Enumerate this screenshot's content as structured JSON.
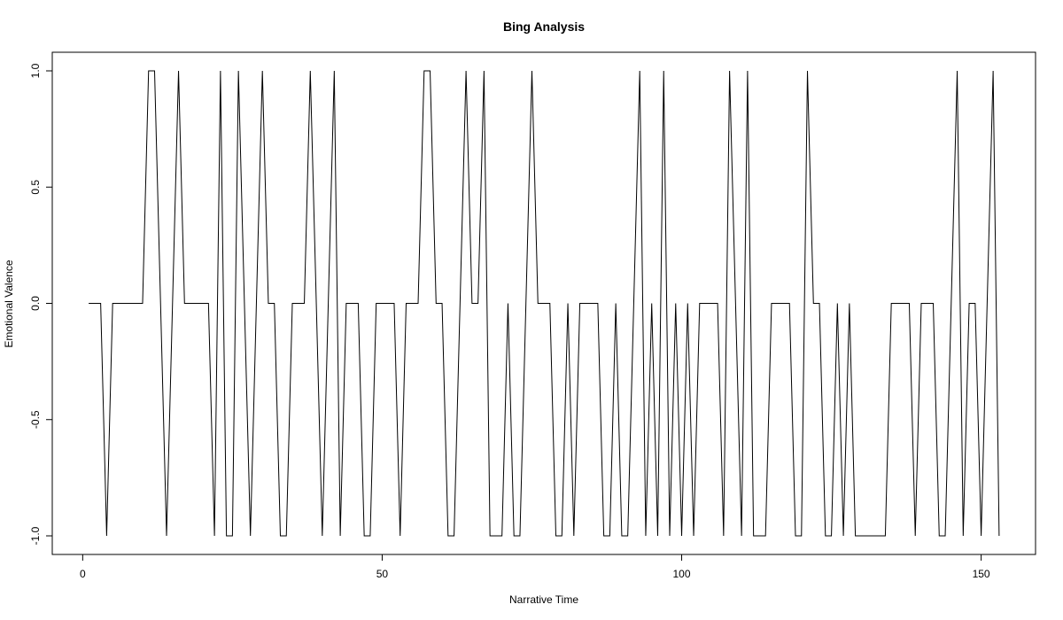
{
  "chart_data": {
    "type": "line",
    "title": "Bing Analysis",
    "x_label": "Narrative Time",
    "y_label": "Emotional Valence",
    "color": "#000000",
    "x": [
      1,
      2,
      3,
      4,
      5,
      6,
      7,
      8,
      9,
      10,
      11,
      12,
      13,
      14,
      15,
      16,
      17,
      18,
      19,
      20,
      21,
      22,
      23,
      24,
      25,
      26,
      27,
      28,
      29,
      30,
      31,
      32,
      33,
      34,
      35,
      36,
      37,
      38,
      39,
      40,
      41,
      42,
      43,
      44,
      45,
      46,
      47,
      48,
      49,
      50,
      51,
      52,
      53,
      54,
      55,
      56,
      57,
      58,
      59,
      60,
      61,
      62,
      63,
      64,
      65,
      66,
      67,
      68,
      69,
      70,
      71,
      72,
      73,
      74,
      75,
      76,
      77,
      78,
      79,
      80,
      81,
      82,
      83,
      84,
      85,
      86,
      87,
      88,
      89,
      90,
      91,
      92,
      93,
      94,
      95,
      96,
      97,
      98,
      99,
      100,
      101,
      102,
      103,
      104,
      105,
      106,
      107,
      108,
      109,
      110,
      111,
      112,
      113,
      114,
      115,
      116,
      117,
      118,
      119,
      120,
      121,
      122,
      123,
      124,
      125,
      126,
      127,
      128,
      129,
      130,
      131,
      132,
      133,
      134,
      135,
      136,
      137,
      138,
      139,
      140,
      141,
      142,
      143,
      144,
      145,
      146,
      147,
      148,
      149,
      150,
      151,
      152,
      153
    ],
    "values": [
      0,
      0,
      0,
      -1,
      0,
      0,
      0,
      0,
      0,
      0,
      1,
      1,
      0,
      -1,
      0,
      1,
      0,
      0,
      0,
      0,
      0,
      -1,
      1,
      -1,
      -1,
      1,
      0,
      -1,
      0,
      1,
      0,
      0,
      -1,
      -1,
      0,
      0,
      0,
      1,
      0,
      -1,
      0,
      1,
      -1,
      0,
      0,
      0,
      -1,
      -1,
      0,
      0,
      0,
      0,
      -1,
      0,
      0,
      0,
      1,
      1,
      0,
      0,
      -1,
      -1,
      0,
      1,
      0,
      0,
      1,
      -1,
      -1,
      -1,
      0,
      -1,
      -1,
      0,
      1,
      0,
      0,
      0,
      -1,
      -1,
      0,
      -1,
      0,
      0,
      0,
      0,
      -1,
      -1,
      0,
      -1,
      -1,
      0,
      1,
      -1,
      0,
      -1,
      1,
      -1,
      0,
      -1,
      0,
      -1,
      0,
      0,
      0,
      0,
      -1,
      1,
      0,
      -1,
      1,
      -1,
      -1,
      -1,
      0,
      0,
      0,
      0,
      -1,
      -1,
      1,
      0,
      0,
      -1,
      -1,
      0,
      -1,
      0,
      -1,
      -1,
      -1,
      -1,
      -1,
      -1,
      0,
      0,
      0,
      0,
      -1,
      0,
      0,
      0,
      -1,
      -1,
      0,
      1,
      -1,
      0,
      0,
      -1,
      0,
      1,
      -1
    ],
    "xlim": [
      -5.08,
      159.08
    ],
    "ylim": [
      -1.08,
      1.08
    ],
    "xticks": [
      0,
      50,
      100,
      150
    ],
    "yticks": [
      {
        "value": -1,
        "label": "-1.0"
      },
      {
        "value": -0.5,
        "label": "-0.5"
      },
      {
        "value": 0,
        "label": "0.0"
      },
      {
        "value": 0.5,
        "label": "0.5"
      },
      {
        "value": 1,
        "label": "1.0"
      }
    ]
  }
}
